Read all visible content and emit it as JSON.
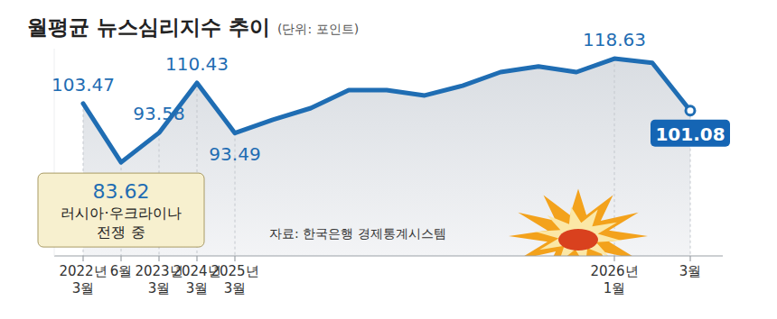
{
  "chart_data": {
    "type": "line",
    "title": "월평균 뉴스심리지수 추이",
    "subtitle": "(단위: 포인트)",
    "source": "자료: 한국은행 경제통계시스템",
    "categories": [
      "2022년 3월",
      "6월",
      "2023년 3월",
      "2024년 3월",
      "2025년 3월",
      null,
      null,
      null,
      null,
      null,
      null,
      null,
      null,
      null,
      "2026년 1월",
      null,
      "3월"
    ],
    "values": [
      103.47,
      83.62,
      93.58,
      110.43,
      93.49,
      98.0,
      101.9,
      108.0,
      108.0,
      106.2,
      109.5,
      114.1,
      116.0,
      114.1,
      118.63,
      117.2,
      101.08
    ],
    "value_labels": [
      "103.47",
      "83.62",
      "93.58",
      "110.43",
      "93.49",
      null,
      null,
      null,
      null,
      null,
      null,
      null,
      null,
      null,
      "118.63",
      null,
      "101.08"
    ],
    "color": "#1f6db3",
    "ylim": [
      52,
      122
    ],
    "yticks": [],
    "tick_labels": "x",
    "grid": false,
    "data_labels": true,
    "annotation": {
      "text": "러시아·우크라이나 전쟁 중",
      "at": 1
    }
  }
}
